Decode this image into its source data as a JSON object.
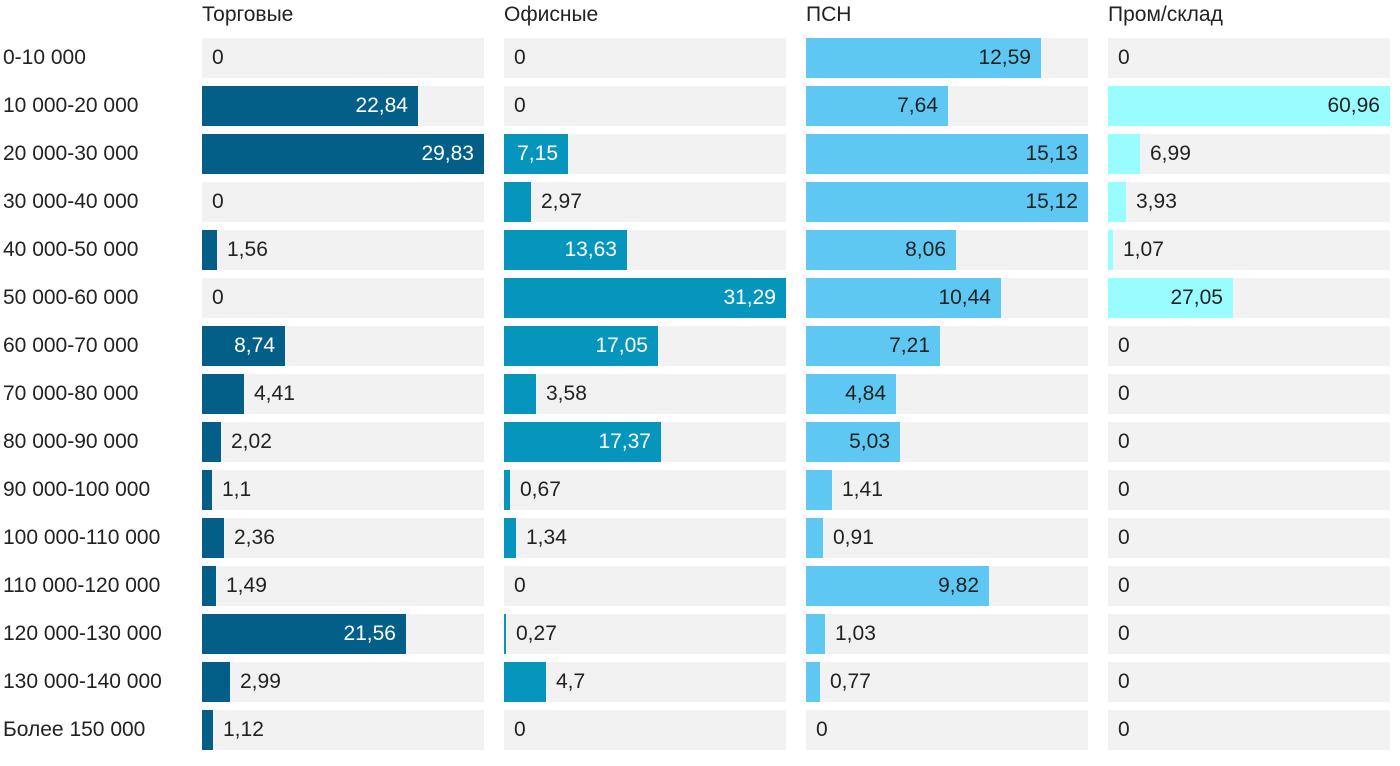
{
  "chart_data": {
    "type": "bar",
    "title": "",
    "categories": [
      "0-10 000",
      "10 000-20 000",
      "20 000-30 000",
      "30 000-40 000",
      "40 000-50 000",
      "50 000-60 000",
      "60 000-70 000",
      "70 000-80 000",
      "80 000-90 000",
      "90 000-100 000",
      "100 000-110 000",
      "110 000-120 000",
      "120 000-130 000",
      "130 000-140 000",
      "Более 150 000"
    ],
    "series": [
      {
        "name": "Торговые",
        "color": "#035f87",
        "values": [
          0,
          22.84,
          29.83,
          0,
          1.56,
          0,
          8.74,
          4.41,
          2.02,
          1.1,
          2.36,
          1.49,
          21.56,
          2.99,
          1.12
        ],
        "labels": [
          "0",
          "22,84",
          "29,83",
          "0",
          "1,56",
          "0",
          "8,74",
          "4,41",
          "2,02",
          "1,1",
          "2,36",
          "1,49",
          "21,56",
          "2,99",
          "1,12"
        ]
      },
      {
        "name": "Офисные",
        "color": "#0695bd",
        "values": [
          0,
          0,
          7.15,
          2.97,
          13.63,
          31.29,
          17.05,
          3.58,
          17.37,
          0.67,
          1.34,
          0,
          0.27,
          4.7,
          0
        ],
        "labels": [
          "0",
          "0",
          "7,15",
          "2,97",
          "13,63",
          "31,29",
          "17,05",
          "3,58",
          "17,37",
          "0,67",
          "1,34",
          "0",
          "0,27",
          "4,7",
          "0"
        ]
      },
      {
        "name": "ПСН",
        "color": "#5ec8f2",
        "values": [
          12.59,
          7.64,
          15.13,
          15.12,
          8.06,
          10.44,
          7.21,
          4.84,
          5.03,
          1.41,
          0.91,
          9.82,
          1.03,
          0.77,
          0
        ],
        "labels": [
          "12,59",
          "7,64",
          "15,13",
          "15,12",
          "8,06",
          "10,44",
          "7,21",
          "4,84",
          "5,03",
          "1,41",
          "0,91",
          "9,82",
          "1,03",
          "0,77",
          "0"
        ]
      },
      {
        "name": "Пром/склад",
        "color": "#99fcff",
        "values": [
          0,
          60.96,
          6.99,
          3.93,
          1.07,
          27.05,
          0,
          0,
          0,
          0,
          0,
          0,
          0,
          0,
          0
        ],
        "labels": [
          "0",
          "60,96",
          "6,99",
          "3,93",
          "1,07",
          "27,05",
          "0",
          "0",
          "0",
          "0",
          "0",
          "0",
          "0",
          "0",
          "0"
        ]
      }
    ],
    "colors": {
      "track": "#f2f2f2",
      "label_light": "#ffffff",
      "label_dark": "#222222"
    },
    "legend": "none",
    "grid": false
  }
}
